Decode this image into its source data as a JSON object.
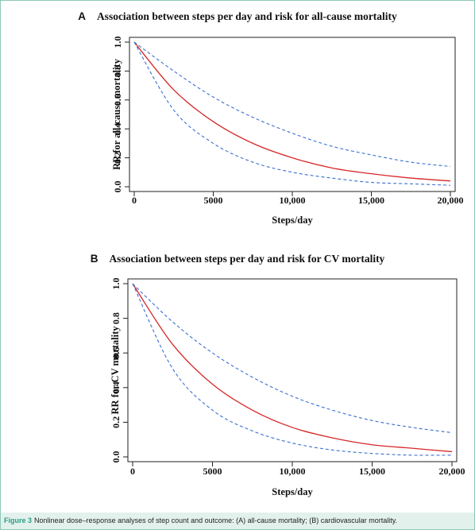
{
  "figure": {
    "caption_label": "Figure 3",
    "caption_text": "Nonlinear dose–response analyses of step count and outcome: (A) all-cause mortality; (B) cardiovascular mortality."
  },
  "colors": {
    "estimate": "#d62728",
    "ci": "#3b6fd1",
    "caption_bg": "#e3f1ec",
    "caption_label": "#2a9d84"
  },
  "chart_data": [
    {
      "panel": "A",
      "type": "line",
      "title": "Association between steps per day and risk for all-cause mortality",
      "xlabel": "Steps/day",
      "ylabel": "RR for all-cause mortality",
      "xlim": [
        0,
        20000
      ],
      "ylim": [
        0,
        1.0
      ],
      "xticks": [
        0,
        5000,
        10000,
        15000,
        20000
      ],
      "xtick_labels": [
        "0",
        "5000",
        "10,000",
        "15,000",
        "20,000"
      ],
      "yticks": [
        0,
        0.2,
        0.4,
        0.6,
        0.8,
        1.0
      ],
      "ytick_labels": [
        "0.0",
        "0.2",
        "0.4",
        "0.6",
        "0.8",
        "1.0"
      ],
      "x": [
        0,
        2500,
        5000,
        7500,
        10000,
        12500,
        15000,
        17500,
        20000
      ],
      "series": [
        {
          "role": "estimate",
          "style": "solid",
          "values": [
            1.0,
            0.67,
            0.45,
            0.3,
            0.2,
            0.13,
            0.09,
            0.06,
            0.04
          ]
        },
        {
          "role": "upper",
          "style": "dashed",
          "values": [
            1.0,
            0.8,
            0.62,
            0.48,
            0.37,
            0.28,
            0.22,
            0.17,
            0.14
          ]
        },
        {
          "role": "lower",
          "style": "dashed",
          "values": [
            1.0,
            0.53,
            0.3,
            0.17,
            0.1,
            0.06,
            0.03,
            0.02,
            0.01
          ]
        }
      ],
      "grid": false
    },
    {
      "panel": "B",
      "type": "line",
      "title": "Association between steps per day and risk for CV mortality",
      "xlabel": "Steps/day",
      "ylabel": "RR for CV mortality",
      "xlim": [
        0,
        20000
      ],
      "ylim": [
        0,
        1.0
      ],
      "xticks": [
        0,
        5000,
        10000,
        15000,
        20000
      ],
      "xtick_labels": [
        "0",
        "5000",
        "10,000",
        "15,000",
        "20,000"
      ],
      "yticks": [
        0,
        0.2,
        0.4,
        0.6,
        0.8,
        1.0
      ],
      "ytick_labels": [
        "0.0",
        "0.2",
        "0.4",
        "0.6",
        "0.8",
        "1.0"
      ],
      "x": [
        0,
        2500,
        5000,
        7500,
        10000,
        12500,
        15000,
        17500,
        20000
      ],
      "series": [
        {
          "role": "estimate",
          "style": "solid",
          "values": [
            1.0,
            0.65,
            0.42,
            0.27,
            0.17,
            0.11,
            0.07,
            0.05,
            0.03
          ]
        },
        {
          "role": "upper",
          "style": "dashed",
          "values": [
            1.0,
            0.78,
            0.6,
            0.46,
            0.35,
            0.27,
            0.21,
            0.17,
            0.14
          ]
        },
        {
          "role": "lower",
          "style": "dashed",
          "values": [
            1.0,
            0.51,
            0.27,
            0.15,
            0.08,
            0.04,
            0.02,
            0.01,
            0.01
          ]
        }
      ],
      "grid": false
    }
  ]
}
